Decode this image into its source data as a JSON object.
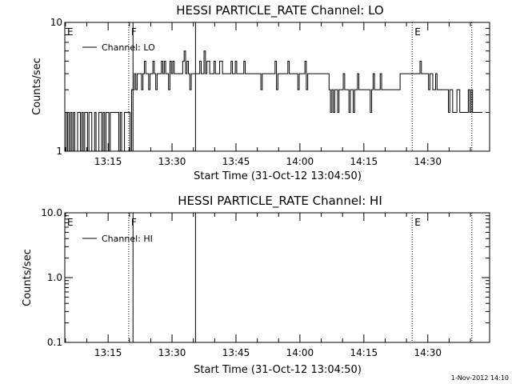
{
  "chart_data": [
    {
      "type": "line",
      "title": "HESSI PARTICLE_RATE Channel: LO",
      "xlabel": "Start Time (31-Oct-12 13:04:50)",
      "ylabel": "Counts/sec",
      "yscale": "log",
      "ylim": [
        1,
        10
      ],
      "ytick_labels": [
        "1",
        "10"
      ],
      "xlim": [
        "13:04:50",
        "14:44:30"
      ],
      "xtick_labels": [
        "13:15",
        "13:30",
        "13:45",
        "14:00",
        "14:15",
        "14:30"
      ],
      "legend": {
        "placement": "top-left",
        "entries": [
          "Channel: LO"
        ]
      },
      "markers": [
        {
          "label": "E",
          "time": "13:04:50",
          "style": "none"
        },
        {
          "label": "F",
          "time": "13:19:50",
          "style": "dotted"
        },
        {
          "label": "",
          "time": "13:20:50",
          "style": "solid"
        },
        {
          "label": "",
          "time": "13:35:30",
          "style": "solid"
        },
        {
          "label": "E",
          "time": "14:26:20",
          "style": "dotted"
        },
        {
          "label": "",
          "time": "14:40:20",
          "style": "dotted"
        }
      ],
      "series": [
        {
          "name": "Channel: LO",
          "sample_interval_s": 20,
          "start": "13:04:50",
          "end": "14:40:30",
          "values": [
            2,
            1,
            2,
            1,
            2,
            1,
            2,
            1,
            1,
            2,
            2,
            1,
            2,
            1,
            2,
            2,
            1,
            2,
            2,
            1,
            1,
            2,
            1,
            1,
            2,
            2,
            1,
            2,
            1,
            2,
            2,
            1,
            2,
            2,
            2,
            2,
            2,
            2,
            1,
            2,
            1,
            1,
            2,
            2,
            2,
            2,
            1,
            3,
            3,
            4,
            3,
            4,
            4,
            4,
            3,
            4,
            5,
            4,
            4,
            3,
            4,
            4,
            5,
            4,
            3,
            4,
            4,
            4,
            5,
            4,
            5,
            4,
            4,
            3,
            5,
            4,
            5,
            4,
            4,
            4,
            4,
            4,
            4,
            5,
            6,
            4,
            5,
            4,
            3,
            4,
            4,
            4,
            4,
            4,
            4,
            5,
            4,
            4,
            6,
            4,
            5,
            5,
            4,
            4,
            4,
            5,
            4,
            4,
            4,
            5,
            5,
            4,
            4,
            4,
            4,
            4,
            4,
            5,
            4,
            4,
            5,
            4,
            4,
            4,
            4,
            4,
            5,
            4,
            4,
            4,
            4,
            4,
            4,
            4,
            4,
            4,
            4,
            4,
            3,
            4,
            4,
            4,
            4,
            4,
            4,
            4,
            4,
            4,
            5,
            3,
            4,
            4,
            4,
            4,
            4,
            4,
            4,
            5,
            4,
            4,
            4,
            4,
            4,
            4,
            3,
            4,
            4,
            4,
            4,
            5,
            3,
            4,
            4,
            4,
            4,
            4,
            4,
            4,
            4,
            4,
            4,
            4,
            4,
            4,
            4,
            4,
            3,
            2,
            3,
            2,
            3,
            3,
            2,
            3,
            3,
            3,
            4,
            3,
            3,
            3,
            2,
            3,
            3,
            2,
            3,
            3,
            4,
            3,
            3,
            3,
            3,
            3,
            3,
            3,
            3,
            2,
            3,
            4,
            3,
            3,
            3,
            3,
            4,
            3,
            3,
            3,
            3,
            3,
            3,
            3,
            3,
            3,
            3,
            3,
            3,
            3,
            4,
            4,
            4,
            4,
            4,
            4,
            4,
            4,
            4,
            4,
            4,
            4,
            4,
            4,
            5,
            4,
            4,
            4,
            4,
            4,
            3,
            4,
            4,
            3,
            3,
            4,
            3,
            3,
            3,
            3,
            3,
            3,
            3,
            3,
            2,
            3,
            3,
            2,
            2,
            2,
            3,
            3,
            2,
            2,
            2,
            2,
            2,
            2,
            3,
            2,
            3,
            2,
            2,
            2,
            2,
            2,
            2,
            2,
            2
          ]
        }
      ]
    },
    {
      "type": "line",
      "title": "HESSI PARTICLE_RATE Channel: HI",
      "xlabel": "Start Time (31-Oct-12 13:04:50)",
      "ylabel": "Counts/sec",
      "yscale": "log",
      "ylim": [
        0.1,
        10
      ],
      "ytick_labels": [
        "0.1",
        "1.0",
        "10.0"
      ],
      "xlim": [
        "13:04:50",
        "14:44:30"
      ],
      "xtick_labels": [
        "13:15",
        "13:30",
        "13:45",
        "14:00",
        "14:15",
        "14:30"
      ],
      "legend": {
        "placement": "top-left",
        "entries": [
          "Channel: HI"
        ]
      },
      "markers": [
        {
          "label": "E",
          "time": "13:04:50",
          "style": "none"
        },
        {
          "label": "F",
          "time": "13:19:50",
          "style": "dotted"
        },
        {
          "label": "",
          "time": "13:20:50",
          "style": "solid"
        },
        {
          "label": "",
          "time": "13:35:30",
          "style": "solid"
        },
        {
          "label": "E",
          "time": "14:26:20",
          "style": "dotted"
        },
        {
          "label": "",
          "time": "14:40:20",
          "style": "dotted"
        }
      ],
      "series": [
        {
          "name": "Channel: HI",
          "values": []
        }
      ]
    }
  ],
  "footer": {
    "timestamp": "1-Nov-2012 14:10"
  }
}
